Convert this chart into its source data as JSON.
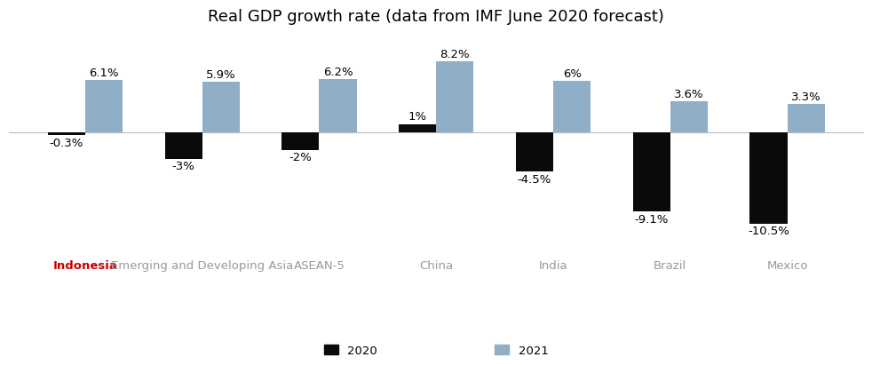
{
  "title": "Real GDP growth rate (data from IMF June 2020 forecast)",
  "categories": [
    "Indonesia",
    "Emerging and Developing Asia",
    "ASEAN-5",
    "China",
    "India",
    "Brazil",
    "Mexico"
  ],
  "values_2020": [
    -0.3,
    -3.0,
    -2.0,
    1.0,
    -4.5,
    -9.1,
    -10.5
  ],
  "values_2021": [
    6.1,
    5.9,
    6.2,
    8.2,
    6.0,
    3.6,
    3.3
  ],
  "labels_2020": [
    "-0.3%",
    "-3%",
    "-2%",
    "1%",
    "-4.5%",
    "-9.1%",
    "-10.5%"
  ],
  "labels_2021": [
    "6.1%",
    "5.9%",
    "6.2%",
    "8.2%",
    "6%",
    "3.6%",
    "3.3%"
  ],
  "bar_color_2020": "#0a0a0a",
  "bar_color_2021": "#8faec8",
  "title_fontsize": 13,
  "label_fontsize": 9.5,
  "tick_fontsize": 9.5,
  "bar_width": 0.32,
  "background_color": "#ffffff",
  "indonesia_color": "#cc0000",
  "other_label_color": "#999999",
  "ylim": [
    -13.5,
    11.5
  ],
  "legend_2020": "2020",
  "legend_2021": "2021"
}
